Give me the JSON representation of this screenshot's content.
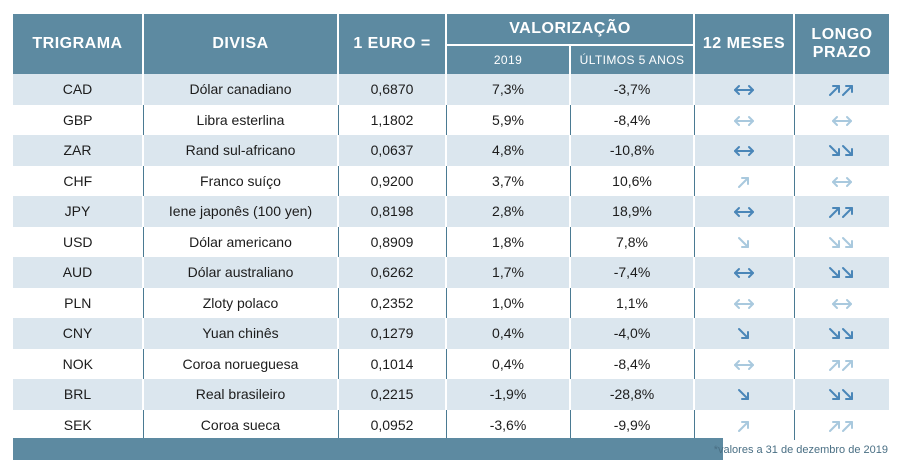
{
  "headers": {
    "trigrama": "TRIGRAMA",
    "divisa": "DIVISA",
    "euro": "1 EURO =",
    "valorizacao": "VALORIZAÇÃO",
    "sub_2019": "2019",
    "sub_5anos": "ÚLTIMOS 5 ANOS",
    "doze_meses": "12 MESES",
    "longo_prazo_1": "LONGO",
    "longo_prazo_2": "PRAZO"
  },
  "colors": {
    "header": "#5d8aa1",
    "stripe": "#dbe6ee",
    "arrow_dark": "#4a86b8",
    "arrow_light": "#a9c9de"
  },
  "rows": [
    {
      "code": "CAD",
      "name": "Dólar canadiano",
      "euro": "0,6870",
      "v2019": "7,3%",
      "v5": "-3,7%",
      "m12": "both",
      "m12_tone": "dark",
      "lp": "up2",
      "lp_tone": "dark"
    },
    {
      "code": "GBP",
      "name": "Libra esterlina",
      "euro": "1,1802",
      "v2019": "5,9%",
      "v5": "-8,4%",
      "m12": "both",
      "m12_tone": "light",
      "lp": "both",
      "lp_tone": "light"
    },
    {
      "code": "ZAR",
      "name": "Rand sul-africano",
      "euro": "0,0637",
      "v2019": "4,8%",
      "v5": "-10,8%",
      "m12": "both",
      "m12_tone": "dark",
      "lp": "down2",
      "lp_tone": "dark"
    },
    {
      "code": "CHF",
      "name": "Franco suíço",
      "euro": "0,9200",
      "v2019": "3,7%",
      "v5": "10,6%",
      "m12": "up",
      "m12_tone": "light",
      "lp": "both",
      "lp_tone": "light"
    },
    {
      "code": "JPY",
      "name": "Iene japonês (100 yen)",
      "euro": "0,8198",
      "v2019": "2,8%",
      "v5": "18,9%",
      "m12": "both",
      "m12_tone": "dark",
      "lp": "up2",
      "lp_tone": "dark"
    },
    {
      "code": "USD",
      "name": "Dólar americano",
      "euro": "0,8909",
      "v2019": "1,8%",
      "v5": "7,8%",
      "m12": "down",
      "m12_tone": "light",
      "lp": "down2",
      "lp_tone": "light"
    },
    {
      "code": "AUD",
      "name": "Dólar australiano",
      "euro": "0,6262",
      "v2019": "1,7%",
      "v5": "-7,4%",
      "m12": "both",
      "m12_tone": "dark",
      "lp": "down2",
      "lp_tone": "dark"
    },
    {
      "code": "PLN",
      "name": "Zloty polaco",
      "euro": "0,2352",
      "v2019": "1,0%",
      "v5": "1,1%",
      "m12": "both",
      "m12_tone": "light",
      "lp": "both",
      "lp_tone": "light"
    },
    {
      "code": "CNY",
      "name": "Yuan chinês",
      "euro": "0,1279",
      "v2019": "0,4%",
      "v5": "-4,0%",
      "m12": "down",
      "m12_tone": "dark",
      "lp": "down2",
      "lp_tone": "dark"
    },
    {
      "code": "NOK",
      "name": "Coroa norueguesa",
      "euro": "0,1014",
      "v2019": "0,4%",
      "v5": "-8,4%",
      "m12": "both",
      "m12_tone": "light",
      "lp": "up2",
      "lp_tone": "light"
    },
    {
      "code": "BRL",
      "name": "Real brasileiro",
      "euro": "0,2215",
      "v2019": "-1,9%",
      "v5": "-28,8%",
      "m12": "down",
      "m12_tone": "dark",
      "lp": "down2",
      "lp_tone": "dark"
    },
    {
      "code": "SEK",
      "name": "Coroa sueca",
      "euro": "0,0952",
      "v2019": "-3,6%",
      "v5": "-9,9%",
      "m12": "up",
      "m12_tone": "light",
      "lp": "up2",
      "lp_tone": "light"
    }
  ],
  "footnote": "*valores a 31 de dezembro de 2019"
}
